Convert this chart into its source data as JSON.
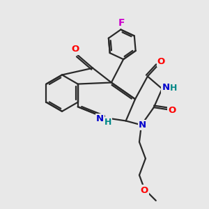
{
  "bg_color": "#e8e8e8",
  "bond_color": "#2a2a2a",
  "bond_width": 1.6,
  "atom_colors": {
    "O": "#ff0000",
    "N": "#0000cc",
    "F": "#cc00cc",
    "H": "#008888",
    "C": "#2a2a2a"
  },
  "font_size": 9.5,
  "fig_size": [
    3.0,
    3.0
  ],
  "dpi": 100
}
